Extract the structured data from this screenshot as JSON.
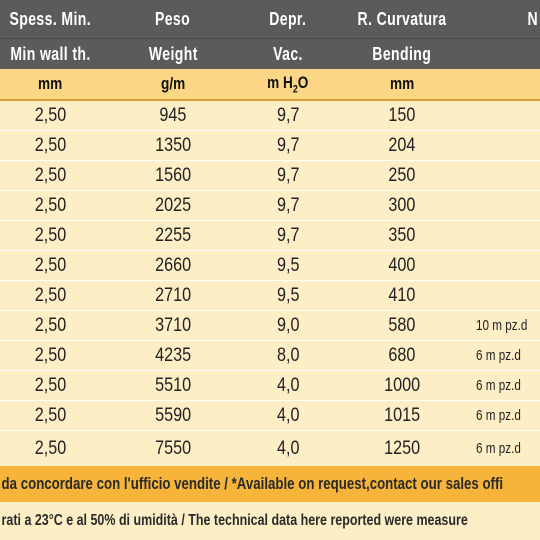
{
  "header_it": [
    "Spess. Min.",
    "Peso",
    "Depr.",
    "R. Curvatura",
    "N"
  ],
  "header_en": [
    "Min wall th.",
    "Weight",
    "Vac.",
    "Bending"
  ],
  "units": [
    "mm",
    "g/m",
    "m H",
    "2",
    "O",
    "mm"
  ],
  "rows": [
    {
      "a": "2,50",
      "b": "945",
      "c": "9,7",
      "d": "150",
      "e": ""
    },
    {
      "a": "2,50",
      "b": "1350",
      "c": "9,7",
      "d": "204",
      "e": ""
    },
    {
      "a": "2,50",
      "b": "1560",
      "c": "9,7",
      "d": "250",
      "e": ""
    },
    {
      "a": "2,50",
      "b": "2025",
      "c": "9,7",
      "d": "300",
      "e": ""
    },
    {
      "a": "2,50",
      "b": "2255",
      "c": "9,7",
      "d": "350",
      "e": ""
    },
    {
      "a": "2,50",
      "b": "2660",
      "c": "9,5",
      "d": "400",
      "e": ""
    },
    {
      "a": "2,50",
      "b": "2710",
      "c": "9,5",
      "d": "410",
      "e": ""
    },
    {
      "a": "2,50",
      "b": "3710",
      "c": "9,0",
      "d": "580",
      "e": "10 m pz.d"
    },
    {
      "a": "2,50",
      "b": "4235",
      "c": "8,0",
      "d": "680",
      "e": "6 m pz.d"
    },
    {
      "a": "2,50",
      "b": "5510",
      "c": "4,0",
      "d": "1000",
      "e": "6 m pz.d"
    },
    {
      "a": "2,50",
      "b": "5590",
      "c": "4,0",
      "d": "1015",
      "e": "6 m pz.d"
    },
    {
      "a": "2,50",
      "b": "7550",
      "c": "4,0",
      "d": "1250",
      "e": "6 m pz.d"
    }
  ],
  "footer_request": "da concordare con l'ufficio vendite / *Available on request,contact our sales offi",
  "footer_conditions": "rati a 23°C e al 50% di umidità / The technical data here reported were measure",
  "colors": {
    "header": "#5b5b5b",
    "units_band": "#fbd685",
    "row": "#fdeec6",
    "footer": "#f6b43a"
  }
}
